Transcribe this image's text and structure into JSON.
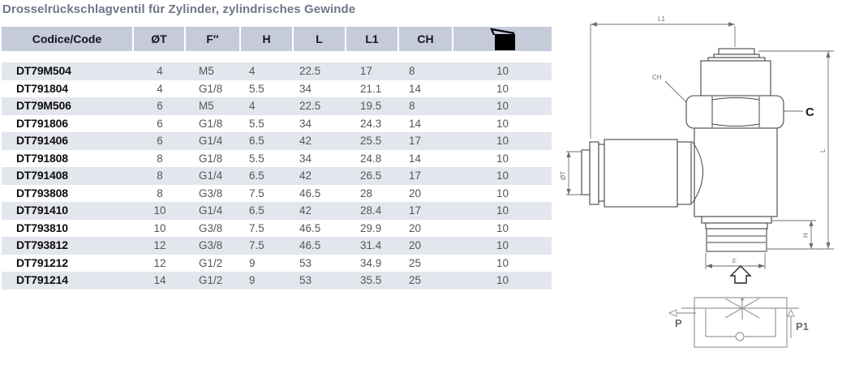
{
  "page": {
    "title": "Drosselrückschlagventil für Zylinder, zylindrisches Gewinde"
  },
  "colors": {
    "header_bg": "#c5cbd9",
    "row_stripe_bg": "#e4e6ee",
    "title_text": "#6e7787",
    "code_text": "#0e0e10",
    "value_text": "#55565a"
  },
  "table": {
    "columns": [
      {
        "label": "Codice/Code"
      },
      {
        "label": "ØT"
      },
      {
        "label": "F″"
      },
      {
        "label": "H"
      },
      {
        "label": "L"
      },
      {
        "label": "L1"
      },
      {
        "label": "CH"
      },
      {
        "label": "",
        "icon": "package-icon"
      }
    ],
    "rows": [
      [
        "DT79M504",
        "4",
        "M5",
        "4",
        "22.5",
        "17",
        "8",
        "10"
      ],
      [
        "DT791804",
        "4",
        "G1/8",
        "5.5",
        "34",
        "21.1",
        "14",
        "10"
      ],
      [
        "DT79M506",
        "6",
        "M5",
        "4",
        "22.5",
        "19.5",
        "8",
        "10"
      ],
      [
        "DT791806",
        "6",
        "G1/8",
        "5.5",
        "34",
        "24.3",
        "14",
        "10"
      ],
      [
        "DT791406",
        "6",
        "G1/4",
        "6.5",
        "42",
        "25.5",
        "17",
        "10"
      ],
      [
        "DT791808",
        "8",
        "G1/8",
        "5.5",
        "34",
        "24.8",
        "14",
        "10"
      ],
      [
        "DT791408",
        "8",
        "G1/4",
        "6.5",
        "42",
        "26.5",
        "17",
        "10"
      ],
      [
        "DT793808",
        "8",
        "G3/8",
        "7.5",
        "46.5",
        "28",
        "20",
        "10"
      ],
      [
        "DT791410",
        "10",
        "G1/4",
        "6.5",
        "42",
        "28.4",
        "17",
        "10"
      ],
      [
        "DT793810",
        "10",
        "G3/8",
        "7.5",
        "46.5",
        "29.9",
        "20",
        "10"
      ],
      [
        "DT793812",
        "12",
        "G3/8",
        "7.5",
        "46.5",
        "31.4",
        "20",
        "10"
      ],
      [
        "DT791212",
        "12",
        "G1/2",
        "9",
        "53",
        "34.9",
        "25",
        "10"
      ],
      [
        "DT791214",
        "14",
        "G1/2",
        "9",
        "53",
        "35.5",
        "25",
        "10"
      ]
    ]
  },
  "diagram": {
    "labels": {
      "l1": "L1",
      "l": "L",
      "ch": "CH",
      "c": "C",
      "ot": "ØT",
      "h": "H",
      "f": "F",
      "p": "P",
      "p1": "P1"
    }
  }
}
